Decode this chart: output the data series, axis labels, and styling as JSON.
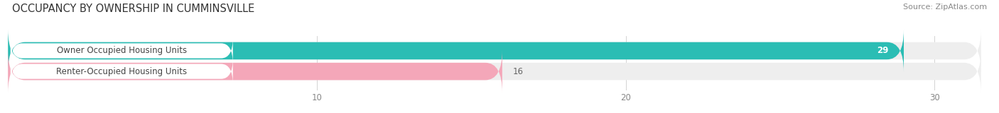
{
  "title": "OCCUPANCY BY OWNERSHIP IN CUMMINSVILLE",
  "source": "Source: ZipAtlas.com",
  "categories": [
    "Owner Occupied Housing Units",
    "Renter-Occupied Housing Units"
  ],
  "values": [
    29,
    16
  ],
  "bar_colors": [
    "#2bbdb4",
    "#f4a7b9"
  ],
  "bar_bg_color": "#eeeeee",
  "value_text_colors": [
    "#ffffff",
    "#555555"
  ],
  "xlim_max": 31.5,
  "xticks": [
    10,
    20,
    30
  ],
  "title_fontsize": 10.5,
  "source_fontsize": 8,
  "label_fontsize": 8.5,
  "value_fontsize": 8.5,
  "tick_fontsize": 8.5,
  "figsize": [
    14.06,
    1.6
  ],
  "dpi": 100
}
